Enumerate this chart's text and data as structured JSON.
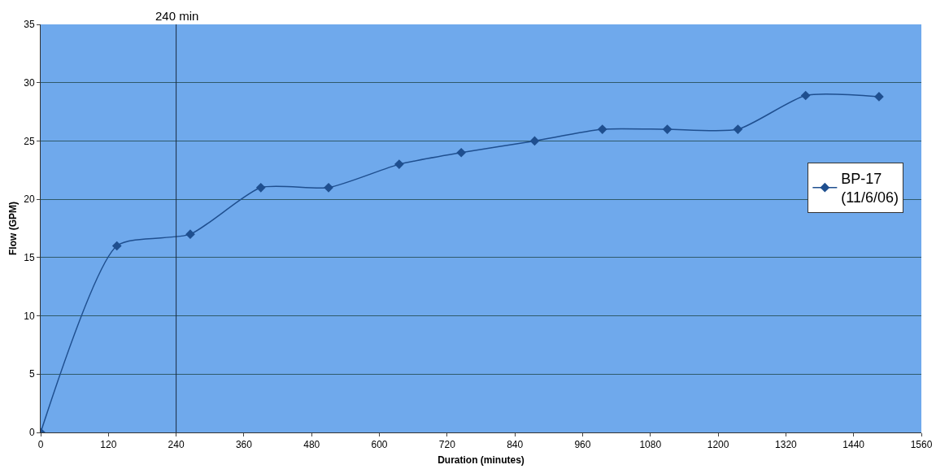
{
  "chart_data": {
    "type": "line",
    "xlabel": "Duration (minutes)",
    "ylabel": "Flow (GPM)",
    "x": [
      0,
      135,
      265,
      390,
      510,
      635,
      745,
      875,
      995,
      1110,
      1235,
      1355,
      1485
    ],
    "series": [
      {
        "name": "BP-17\n(11/6/06)",
        "color": "#1f4f8f",
        "values": [
          0,
          16,
          17,
          21,
          21,
          23,
          24,
          25,
          26,
          26,
          26,
          28.9,
          28.8
        ]
      }
    ],
    "xlim": [
      0,
      1560
    ],
    "xticks": [
      0,
      120,
      240,
      360,
      480,
      600,
      720,
      840,
      960,
      1080,
      1200,
      1320,
      1440,
      1560
    ],
    "ylim": [
      0,
      35
    ],
    "yticks": [
      0,
      5,
      10,
      15,
      20,
      25,
      30,
      35
    ],
    "ref_lines": [
      {
        "axis": "x",
        "value": 240,
        "label": "240 min",
        "color": "#1a2a40"
      }
    ],
    "grid": "y",
    "legend": "right",
    "marker": "diamond",
    "line_style": "solid"
  }
}
